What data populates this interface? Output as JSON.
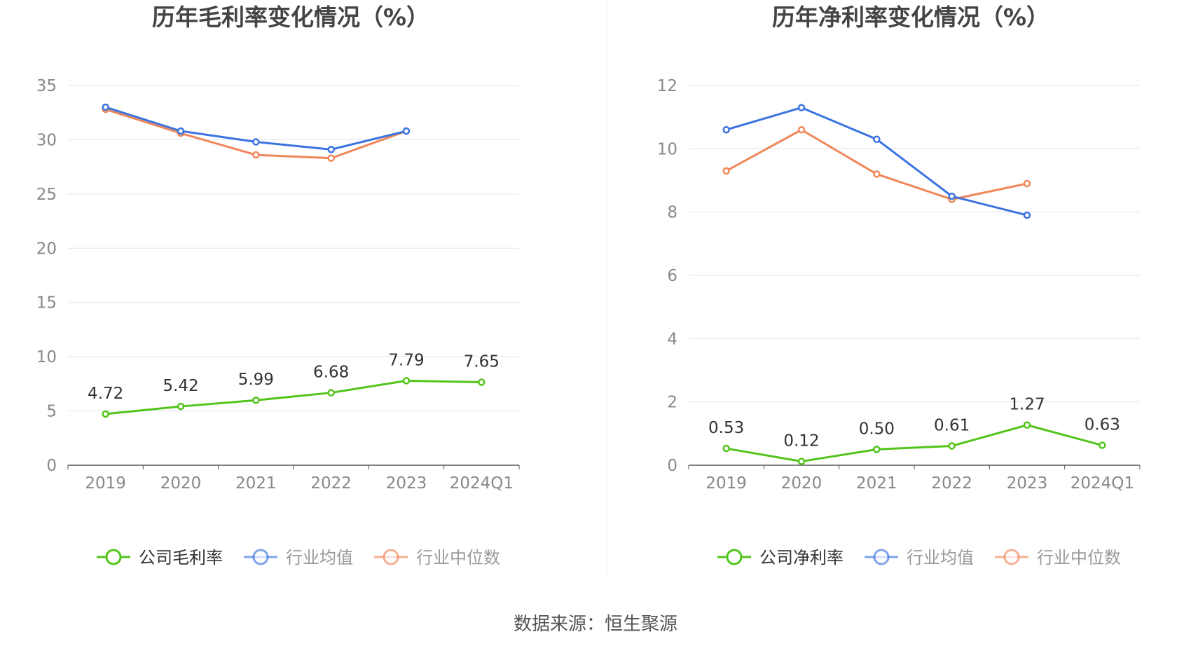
{
  "colors": {
    "company": "#52c41a",
    "industry_avg": "#3b73e0",
    "industry_median": "#f0875a",
    "grid": "#dfe3f0",
    "axis_text": "#888888",
    "title_text": "#444444"
  },
  "source": "数据来源：恒生聚源",
  "chart_data": [
    {
      "type": "line",
      "title": "历年毛利率变化情况（%）",
      "categories": [
        "2019",
        "2020",
        "2021",
        "2022",
        "2023",
        "2024Q1"
      ],
      "ylim": [
        0,
        35
      ],
      "yticks": [
        0,
        5,
        10,
        15,
        20,
        25,
        30,
        35
      ],
      "grid": true,
      "legend_position": "bottom",
      "series": [
        {
          "name": "公司毛利率",
          "key": "company",
          "values": [
            4.72,
            5.42,
            5.99,
            6.68,
            7.79,
            7.65
          ],
          "labels": [
            "4.72",
            "5.42",
            "5.99",
            "6.68",
            "7.79",
            "7.65"
          ]
        },
        {
          "name": "行业均值",
          "key": "industry_avg",
          "values": [
            33.0,
            30.8,
            29.8,
            29.1,
            30.8,
            null
          ]
        },
        {
          "name": "行业中位数",
          "key": "industry_median",
          "values": [
            32.8,
            30.6,
            28.6,
            28.3,
            30.8,
            null
          ]
        }
      ]
    },
    {
      "type": "line",
      "title": "历年净利率变化情况（%）",
      "categories": [
        "2019",
        "2020",
        "2021",
        "2022",
        "2023",
        "2024Q1"
      ],
      "ylim": [
        0,
        12
      ],
      "yticks": [
        0,
        2,
        4,
        6,
        8,
        10,
        12
      ],
      "grid": true,
      "legend_position": "bottom",
      "series": [
        {
          "name": "公司净利率",
          "key": "company",
          "values": [
            0.53,
            0.12,
            0.5,
            0.61,
            1.27,
            0.63
          ],
          "labels": [
            "0.53",
            "0.12",
            "0.50",
            "0.61",
            "1.27",
            "0.63"
          ]
        },
        {
          "name": "行业均值",
          "key": "industry_avg",
          "values": [
            10.6,
            11.3,
            10.3,
            8.5,
            7.9,
            null
          ]
        },
        {
          "name": "行业中位数",
          "key": "industry_median",
          "values": [
            9.3,
            10.6,
            9.2,
            8.4,
            8.9,
            null
          ]
        }
      ]
    }
  ]
}
